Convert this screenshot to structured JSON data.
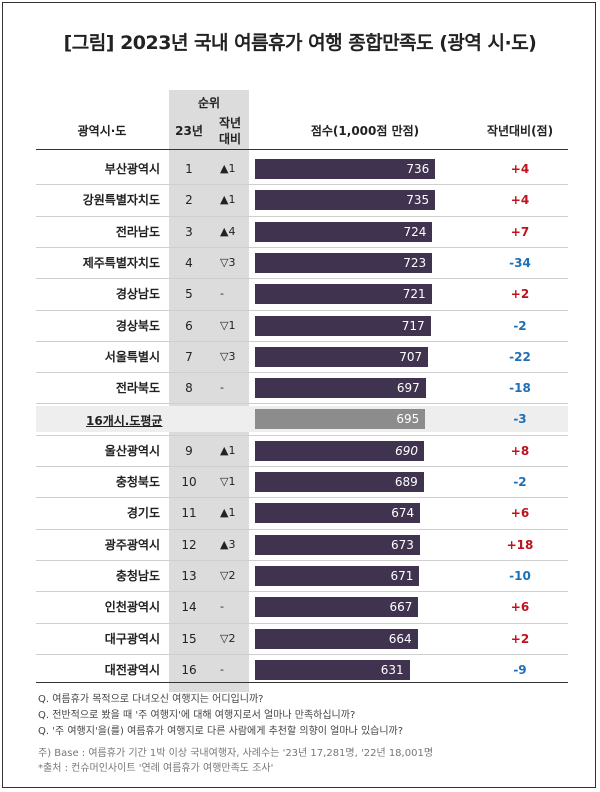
{
  "title": "[그림] 2023년 국내 여름휴가 여행 종합만족도 (광역 시·도)",
  "headers": {
    "region": "광역시·도",
    "rank_group": "순위",
    "rank_23": "23년",
    "rank_yoy_1": "작년",
    "rank_yoy_2": "대비",
    "score": "점수(1,000점 만점)",
    "delta": "작년대비(점)"
  },
  "colors": {
    "bar": "#3f3350",
    "avg_bar": "#8c8c8c",
    "positive": "#c0121c",
    "negative": "#1e6fb8"
  },
  "chart_data": {
    "type": "bar",
    "orientation": "horizontal",
    "title": "[그림] 2023년 국내 여름휴가 여행 종합만족도 (광역 시·도)",
    "xlabel": "점수(1,000점 만점)",
    "xlim": [
      0,
      1000
    ],
    "rows": [
      {
        "region": "부산광역시",
        "rank": "1",
        "rank_change": "▲1",
        "score": 736,
        "delta": "+4",
        "dir": "pos",
        "avg": false
      },
      {
        "region": "강원특별자치도",
        "rank": "2",
        "rank_change": "▲1",
        "score": 735,
        "delta": "+4",
        "dir": "pos",
        "avg": false
      },
      {
        "region": "전라남도",
        "rank": "3",
        "rank_change": "▲4",
        "score": 724,
        "delta": "+7",
        "dir": "pos",
        "avg": false
      },
      {
        "region": "제주특별자치도",
        "rank": "4",
        "rank_change": "▽3",
        "score": 723,
        "delta": "-34",
        "dir": "neg",
        "avg": false
      },
      {
        "region": "경상남도",
        "rank": "5",
        "rank_change": "-",
        "score": 721,
        "delta": "+2",
        "dir": "pos",
        "avg": false
      },
      {
        "region": "경상북도",
        "rank": "6",
        "rank_change": "▽1",
        "score": 717,
        "delta": "-2",
        "dir": "neg",
        "avg": false
      },
      {
        "region": "서울특별시",
        "rank": "7",
        "rank_change": "▽3",
        "score": 707,
        "delta": "-22",
        "dir": "neg",
        "avg": false
      },
      {
        "region": "전라북도",
        "rank": "8",
        "rank_change": "-",
        "score": 697,
        "delta": "-18",
        "dir": "neg",
        "avg": false
      },
      {
        "region": "16개시.도평균",
        "rank": "",
        "rank_change": "",
        "score": 695,
        "delta": "-3",
        "dir": "neg",
        "avg": true
      },
      {
        "region": "울산광역시",
        "rank": "9",
        "rank_change": "▲1",
        "score": 690,
        "delta": "+8",
        "dir": "pos",
        "avg": false
      },
      {
        "region": "충청북도",
        "rank": "10",
        "rank_change": "▽1",
        "score": 689,
        "delta": "-2",
        "dir": "neg",
        "avg": false
      },
      {
        "region": "경기도",
        "rank": "11",
        "rank_change": "▲1",
        "score": 674,
        "delta": "+6",
        "dir": "pos",
        "avg": false
      },
      {
        "region": "광주광역시",
        "rank": "12",
        "rank_change": "▲3",
        "score": 673,
        "delta": "+18",
        "dir": "pos",
        "avg": false
      },
      {
        "region": "충청남도",
        "rank": "13",
        "rank_change": "▽2",
        "score": 671,
        "delta": "-10",
        "dir": "neg",
        "avg": false
      },
      {
        "region": "인천광역시",
        "rank": "14",
        "rank_change": "-",
        "score": 667,
        "delta": "+6",
        "dir": "pos",
        "avg": false
      },
      {
        "region": "대구광역시",
        "rank": "15",
        "rank_change": "▽2",
        "score": 664,
        "delta": "+2",
        "dir": "pos",
        "avg": false
      },
      {
        "region": "대전광역시",
        "rank": "16",
        "rank_change": "-",
        "score": 631,
        "delta": "-9",
        "dir": "neg",
        "avg": false
      }
    ]
  },
  "notes": {
    "q1": "Q. 여름휴가 목적으로 다녀오신 여행지는 어디입니까?",
    "q2": "Q. 전반적으로 봤을 때 '주 여행지'에 대해 여행지로서 얼마나 만족하십니까?",
    "q3": "Q. '주 여행지'을(를) 여름휴가 여행지로 다른 사람에게 추천할 의향이 얼마나 있습니까?",
    "base": "주) Base : 여름휴가 기간 1박 이상 국내여행자, 사례수는 '23년 17,281명, '22년 18,001명",
    "source": "*출처 : 컨슈머인사이트 '연례 여름휴가 여행만족도 조사'"
  }
}
